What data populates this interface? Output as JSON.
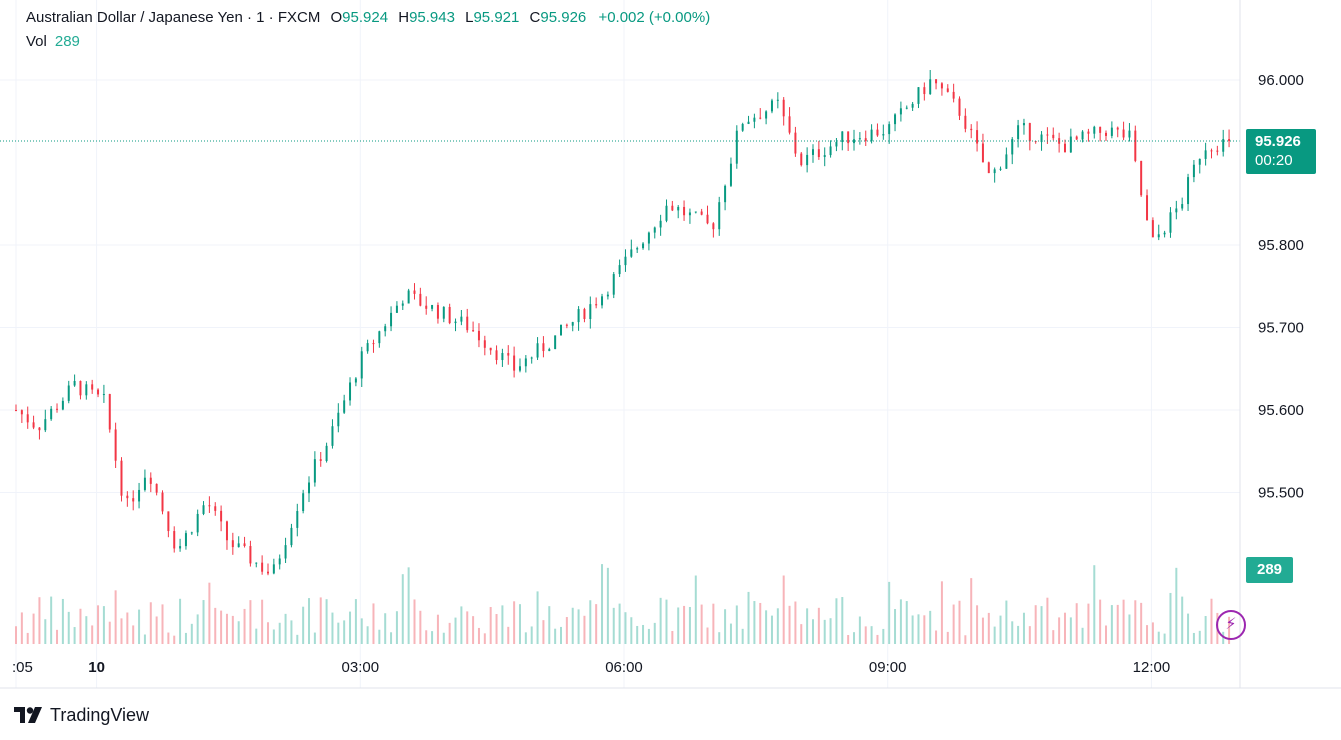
{
  "header": {
    "symbol": "Australian Dollar / Japanese Yen · 1 · FXCM",
    "open_label": "O",
    "open": "95.924",
    "high_label": "H",
    "high": "95.943",
    "low_label": "L",
    "low": "95.921",
    "close_label": "C",
    "close": "95.926",
    "change": "+0.002 (+0.00%)",
    "vol_label": "Vol",
    "vol": "289"
  },
  "price_tag": {
    "price": "95.926",
    "countdown": "00:20"
  },
  "vol_tag": "289",
  "brand": "TradingView",
  "colors": {
    "up": "#089981",
    "down": "#f23645",
    "vol_up": "#a5dcd3",
    "vol_down": "#f7b4b9",
    "grid": "#f0f3fa",
    "axis_text": "#131722",
    "indicator": "#9c27b0"
  },
  "icons": {
    "logo": "tradingview-logo-icon",
    "indicator": "lightning-bolt-icon"
  },
  "chart_data": {
    "type": "candlestick",
    "symbol": "AUDJPY",
    "interval": "1 minute",
    "y_axis_ticks": [
      95.5,
      95.6,
      95.7,
      95.8,
      96.0
    ],
    "y_axis_labels": [
      "95.500",
      "95.600",
      "95.700",
      "95.800",
      "96.000"
    ],
    "ylim": [
      95.4,
      96.1
    ],
    "x_axis_labels": [
      ":05",
      "10",
      "03:00",
      "06:00",
      "09:00",
      "12:00"
    ],
    "last_price": 95.926,
    "path_points": [
      {
        "t": "23:05",
        "price": 95.6
      },
      {
        "t": "23:20",
        "price": 95.58
      },
      {
        "t": "23:45",
        "price": 95.63
      },
      {
        "t": "00:05",
        "price": 95.61
      },
      {
        "t": "00:20",
        "price": 95.48
      },
      {
        "t": "00:35",
        "price": 95.53
      },
      {
        "t": "00:55",
        "price": 95.43
      },
      {
        "t": "01:15",
        "price": 95.49
      },
      {
        "t": "01:30",
        "price": 95.44
      },
      {
        "t": "02:00",
        "price": 95.4
      },
      {
        "t": "02:20",
        "price": 95.5
      },
      {
        "t": "02:40",
        "price": 95.57
      },
      {
        "t": "03:00",
        "price": 95.66
      },
      {
        "t": "03:30",
        "price": 95.74
      },
      {
        "t": "04:15",
        "price": 95.7
      },
      {
        "t": "04:45",
        "price": 95.65
      },
      {
        "t": "05:15",
        "price": 95.69
      },
      {
        "t": "05:45",
        "price": 95.74
      },
      {
        "t": "06:30",
        "price": 95.85
      },
      {
        "t": "07:00",
        "price": 95.82
      },
      {
        "t": "07:20",
        "price": 95.95
      },
      {
        "t": "07:45",
        "price": 95.97
      },
      {
        "t": "08:00",
        "price": 95.9
      },
      {
        "t": "08:30",
        "price": 95.93
      },
      {
        "t": "09:00",
        "price": 95.94
      },
      {
        "t": "09:30",
        "price": 96.0
      },
      {
        "t": "09:50",
        "price": 95.96
      },
      {
        "t": "10:10",
        "price": 95.88
      },
      {
        "t": "10:30",
        "price": 95.94
      },
      {
        "t": "11:00",
        "price": 95.92
      },
      {
        "t": "11:30",
        "price": 95.94
      },
      {
        "t": "11:45",
        "price": 95.93
      },
      {
        "t": "12:00",
        "price": 95.8
      },
      {
        "t": "12:20",
        "price": 95.85
      },
      {
        "t": "12:35",
        "price": 95.92
      },
      {
        "t": "12:55",
        "price": 95.926
      }
    ],
    "volume_last": 289
  }
}
